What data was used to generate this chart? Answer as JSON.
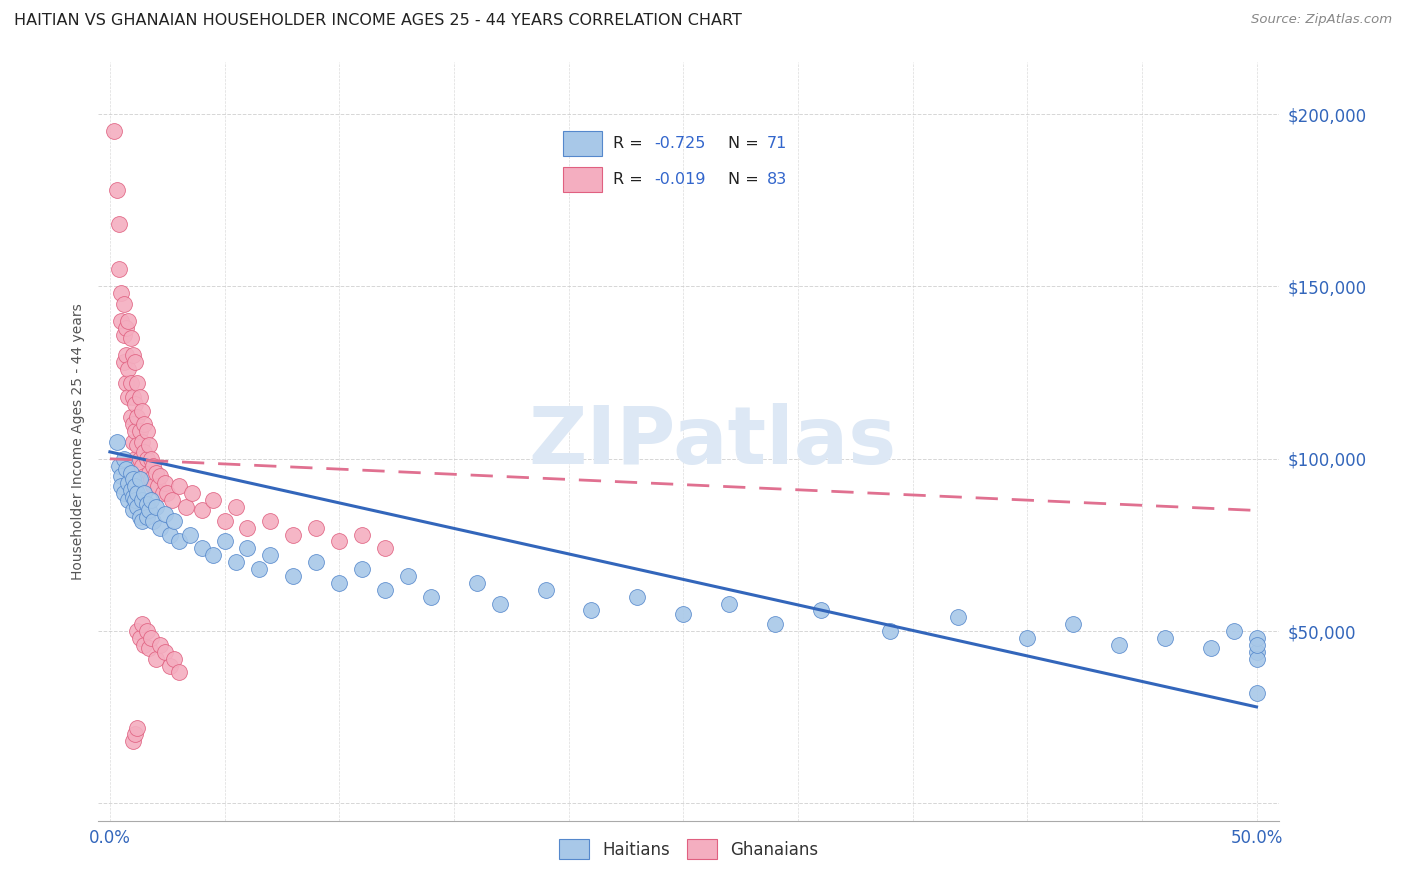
{
  "title": "HAITIAN VS GHANAIAN HOUSEHOLDER INCOME AGES 25 - 44 YEARS CORRELATION CHART",
  "source": "Source: ZipAtlas.com",
  "ylabel": "Householder Income Ages 25 - 44 years",
  "xlim": [
    -0.005,
    0.51
  ],
  "ylim": [
    -5000,
    215000
  ],
  "xticks": [
    0.0,
    0.05,
    0.1,
    0.15,
    0.2,
    0.25,
    0.3,
    0.35,
    0.4,
    0.45,
    0.5
  ],
  "yticks": [
    0,
    50000,
    100000,
    150000,
    200000
  ],
  "ytick_labels": [
    "",
    "$50,000",
    "$100,000",
    "$150,000",
    "$200,000"
  ],
  "haitian_color": "#a8c8e8",
  "ghanaian_color": "#f4aec0",
  "haitian_edge_color": "#5588cc",
  "ghanaian_edge_color": "#e06080",
  "haitian_line_color": "#3366bb",
  "ghanaian_line_color": "#e07090",
  "legend_text_color": "#3366cc",
  "watermark_color": "#dde8f5",
  "haitian_x": [
    0.003,
    0.004,
    0.005,
    0.005,
    0.006,
    0.006,
    0.007,
    0.008,
    0.008,
    0.009,
    0.009,
    0.01,
    0.01,
    0.01,
    0.011,
    0.011,
    0.012,
    0.012,
    0.013,
    0.013,
    0.014,
    0.014,
    0.015,
    0.016,
    0.016,
    0.017,
    0.018,
    0.019,
    0.02,
    0.022,
    0.024,
    0.026,
    0.028,
    0.03,
    0.035,
    0.04,
    0.045,
    0.05,
    0.055,
    0.06,
    0.065,
    0.07,
    0.08,
    0.09,
    0.1,
    0.11,
    0.12,
    0.13,
    0.14,
    0.16,
    0.17,
    0.19,
    0.21,
    0.23,
    0.25,
    0.27,
    0.29,
    0.31,
    0.34,
    0.37,
    0.4,
    0.42,
    0.44,
    0.46,
    0.48,
    0.49,
    0.5,
    0.5,
    0.5,
    0.5,
    0.5
  ],
  "haitian_y": [
    105000,
    98000,
    95000,
    92000,
    100000,
    90000,
    97000,
    93000,
    88000,
    96000,
    91000,
    94000,
    89000,
    85000,
    92000,
    88000,
    90000,
    86000,
    94000,
    83000,
    88000,
    82000,
    90000,
    87000,
    83000,
    85000,
    88000,
    82000,
    86000,
    80000,
    84000,
    78000,
    82000,
    76000,
    78000,
    74000,
    72000,
    76000,
    70000,
    74000,
    68000,
    72000,
    66000,
    70000,
    64000,
    68000,
    62000,
    66000,
    60000,
    64000,
    58000,
    62000,
    56000,
    60000,
    55000,
    58000,
    52000,
    56000,
    50000,
    54000,
    48000,
    52000,
    46000,
    48000,
    45000,
    50000,
    44000,
    48000,
    42000,
    46000,
    32000
  ],
  "ghanaian_x": [
    0.002,
    0.003,
    0.004,
    0.004,
    0.005,
    0.005,
    0.006,
    0.006,
    0.006,
    0.007,
    0.007,
    0.007,
    0.008,
    0.008,
    0.008,
    0.009,
    0.009,
    0.009,
    0.01,
    0.01,
    0.01,
    0.01,
    0.011,
    0.011,
    0.011,
    0.011,
    0.012,
    0.012,
    0.012,
    0.013,
    0.013,
    0.013,
    0.014,
    0.014,
    0.014,
    0.015,
    0.015,
    0.015,
    0.016,
    0.016,
    0.017,
    0.017,
    0.018,
    0.018,
    0.019,
    0.019,
    0.02,
    0.021,
    0.022,
    0.023,
    0.024,
    0.025,
    0.027,
    0.03,
    0.033,
    0.036,
    0.04,
    0.045,
    0.05,
    0.055,
    0.06,
    0.07,
    0.08,
    0.09,
    0.1,
    0.11,
    0.12,
    0.012,
    0.013,
    0.014,
    0.015,
    0.016,
    0.017,
    0.018,
    0.02,
    0.022,
    0.024,
    0.026,
    0.028,
    0.03,
    0.01,
    0.011,
    0.012
  ],
  "ghanaian_y": [
    195000,
    178000,
    168000,
    155000,
    148000,
    140000,
    145000,
    136000,
    128000,
    138000,
    130000,
    122000,
    140000,
    126000,
    118000,
    135000,
    122000,
    112000,
    130000,
    118000,
    110000,
    105000,
    128000,
    116000,
    108000,
    100000,
    122000,
    112000,
    104000,
    118000,
    108000,
    100000,
    114000,
    105000,
    98000,
    110000,
    102000,
    95000,
    108000,
    100000,
    104000,
    96000,
    100000,
    94000,
    98000,
    92000,
    96000,
    92000,
    95000,
    90000,
    93000,
    90000,
    88000,
    92000,
    86000,
    90000,
    85000,
    88000,
    82000,
    86000,
    80000,
    82000,
    78000,
    80000,
    76000,
    78000,
    74000,
    50000,
    48000,
    52000,
    46000,
    50000,
    45000,
    48000,
    42000,
    46000,
    44000,
    40000,
    42000,
    38000,
    18000,
    20000,
    22000
  ],
  "haitian_trend_x": [
    0.0,
    0.5
  ],
  "haitian_trend_y": [
    102000,
    28000
  ],
  "ghanaian_trend_x": [
    0.0,
    0.5
  ],
  "ghanaian_trend_y": [
    100000,
    85000
  ]
}
